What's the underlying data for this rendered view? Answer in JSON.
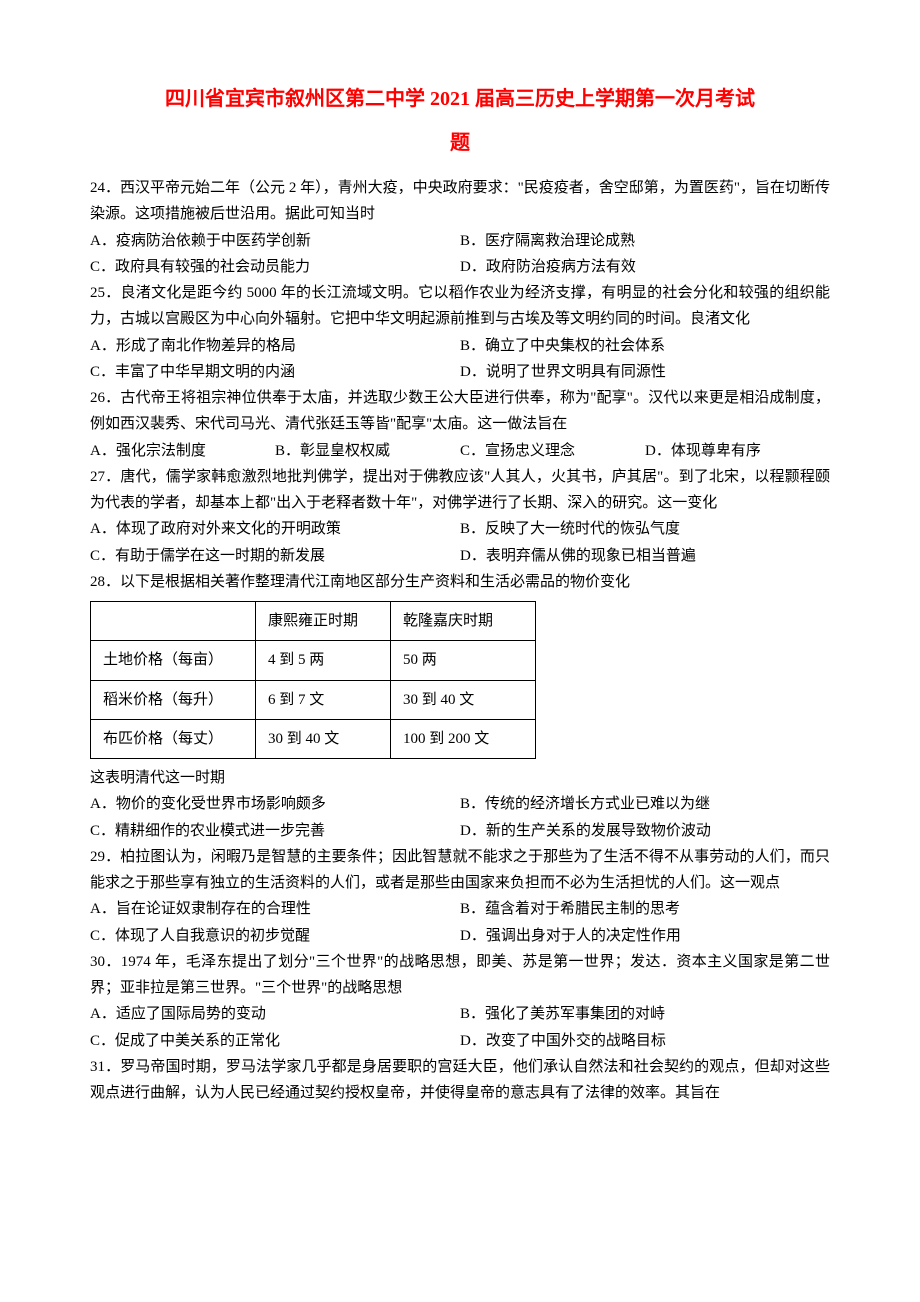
{
  "doc": {
    "title": "四川省宜宾市叙州区第二中学 2021 届高三历史上学期第一次月考试",
    "subtitle": "题",
    "q24": {
      "stem1": "24．西汉平帝元始二年（公元 2 年），青州大疫，中央政府要求：\"民疫疫者，舍空邸第，为置医药\"，旨在切断传染源。这项措施被后世沿用。据此可知当时",
      "a": "A．疫病防治依赖于中医药学创新",
      "b": "B．医疗隔离救治理论成熟",
      "c": "C．政府具有较强的社会动员能力",
      "d": "D．政府防治疫病方法有效"
    },
    "q25": {
      "stem1": "25．良渚文化是距今约 5000 年的长江流域文明。它以稻作农业为经济支撑，有明显的社会分化和较强的组织能力，古城以宫殿区为中心向外辐射。它把中华文明起源前推到与古埃及等文明约同的时间。良渚文化",
      "a": "A．形成了南北作物差异的格局",
      "b": "B．确立了中央集权的社会体系",
      "c": "C．丰富了中华早期文明的内涵",
      "d": "D．说明了世界文明具有同源性"
    },
    "q26": {
      "stem1": "26．古代帝王将祖宗神位供奉于太庙，并选取少数王公大臣进行供奉，称为\"配享\"。汉代以来更是相沿成制度，例如西汉裴秀、宋代司马光、清代张廷玉等皆\"配享\"太庙。这一做法旨在",
      "a": "A．强化宗法制度",
      "b": "B．彰显皇权权威",
      "c": "C．宣扬忠义理念",
      "d": "D．体现尊卑有序"
    },
    "q27": {
      "stem1": "27．唐代，儒学家韩愈激烈地批判佛学，提出对于佛教应该\"人其人，火其书，庐其居\"。到了北宋，以程颢程颐为代表的学者，却基本上都\"出入于老释者数十年\"，对佛学进行了长期、深入的研究。这一变化",
      "a": "A．体现了政府对外来文化的开明政策",
      "b": "B．反映了大一统时代的恢弘气度",
      "c": "C．有助于儒学在这一时期的新发展",
      "d": "D．表明弃儒从佛的现象已相当普遍"
    },
    "q28": {
      "stem1": "28．以下是根据相关著作整理清代江南地区部分生产资料和生活必需品的物价变化",
      "table": {
        "h1": "",
        "h2": "康熙雍正时期",
        "h3": "乾隆嘉庆时期",
        "r1c1": "土地价格（每亩）",
        "r1c2": "4 到 5 两",
        "r1c3": "50 两",
        "r2c1": "稻米价格（每升）",
        "r2c2": "6 到 7 文",
        "r2c3": "30 到 40 文",
        "r3c1": "布匹价格（每丈）",
        "r3c2": "30 到 40 文",
        "r3c3": "100 到 200 文"
      },
      "stem2": "这表明清代这一时期",
      "a": "A．物价的变化受世界市场影响颇多",
      "b": "B．传统的经济增长方式业已难以为继",
      "c": "C．精耕细作的农业模式进一步完善",
      "d": "D．新的生产关系的发展导致物价波动"
    },
    "q29": {
      "stem1": "29．柏拉图认为，闲暇乃是智慧的主要条件；因此智慧就不能求之于那些为了生活不得不从事劳动的人们，而只能求之于那些享有独立的生活资料的人们，或者是那些由国家来负担而不必为生活担忧的人们。这一观点",
      "a": "A．旨在论证奴隶制存在的合理性",
      "b": "B．蕴含着对于希腊民主制的思考",
      "c": "C．体现了人自我意识的初步觉醒",
      "d": "D．强调出身对于人的决定性作用"
    },
    "q30": {
      "stem1": "30．1974 年，毛泽东提出了划分\"三个世界\"的战略思想，即美、苏是第一世界；发达．资本主义国家是第二世界；亚非拉是第三世界。\"三个世界\"的战略思想",
      "a": "A．适应了国际局势的变动",
      "b": "B．强化了美苏军事集团的对峙",
      "c": "C．促成了中美关系的正常化",
      "d": "D．改变了中国外交的战略目标"
    },
    "q31": {
      "stem1": "31．罗马帝国时期，罗马法学家几乎都是身居要职的宫廷大臣，他们承认自然法和社会契约的观点，但却对这些观点进行曲解，认为人民已经通过契约授权皇帝，并使得皇帝的意志具有了法律的效率。其旨在"
    }
  }
}
